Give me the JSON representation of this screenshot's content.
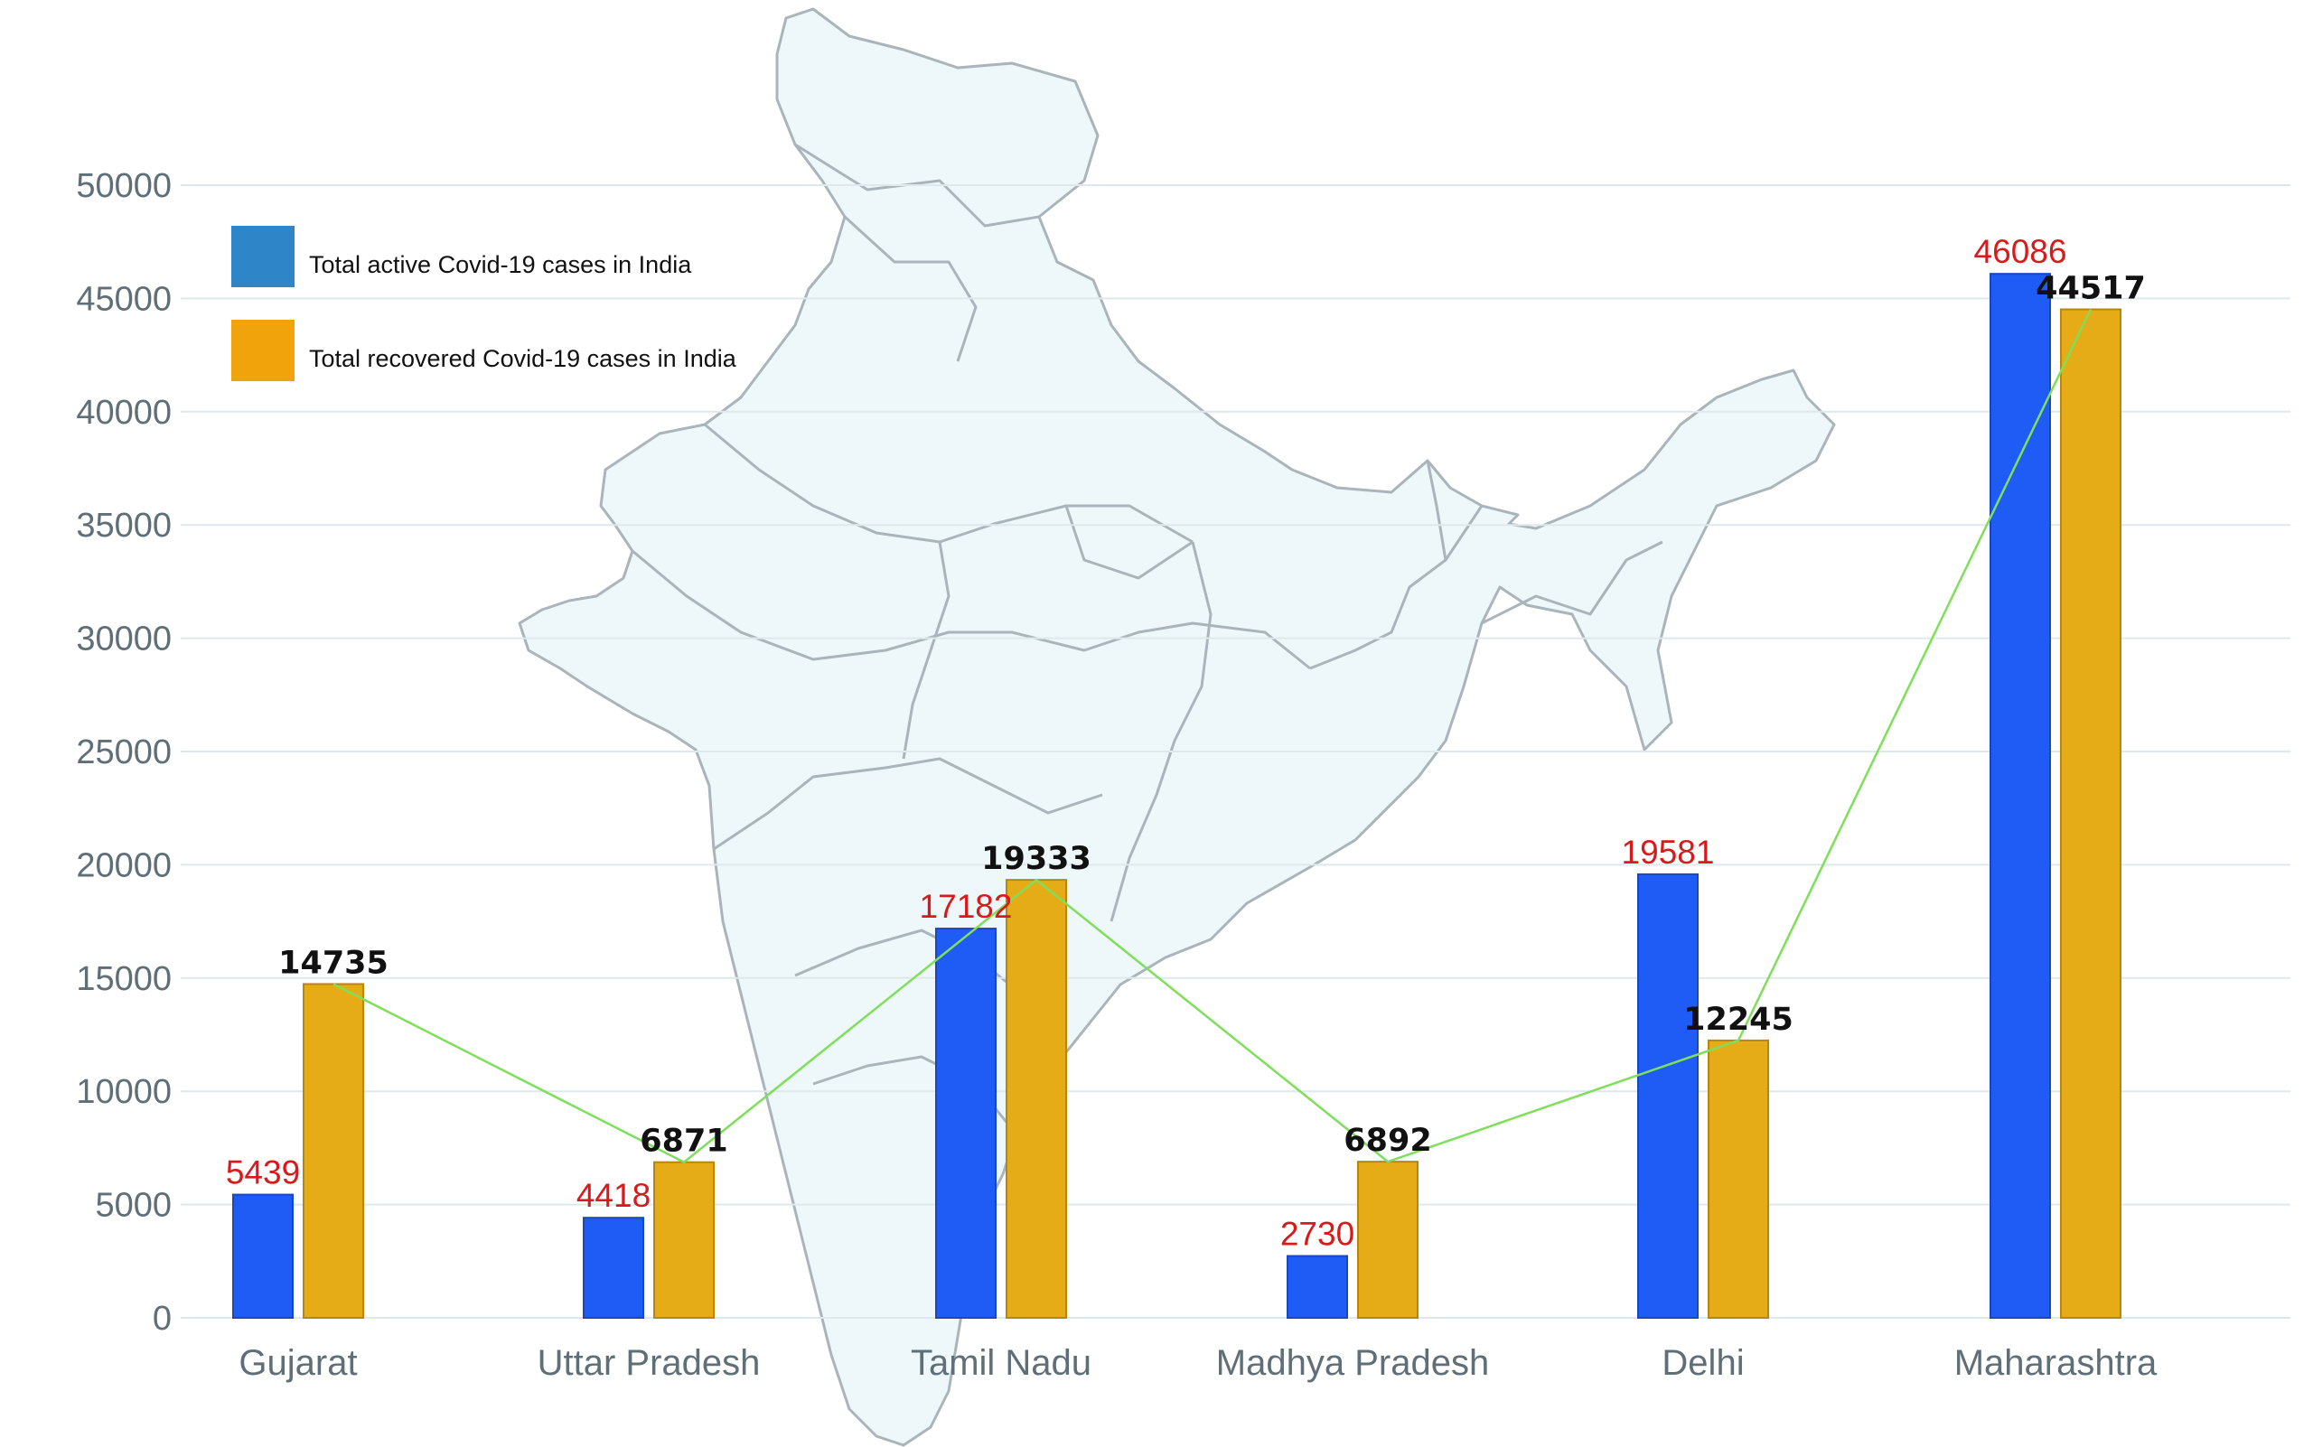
{
  "chart_data": {
    "type": "bar",
    "categories": [
      "Gujarat",
      "Uttar Pradesh",
      "Tamil Nadu",
      "Madhya Pradesh",
      "Delhi",
      "Maharashtra"
    ],
    "series": [
      {
        "name": "Total active Covid-19 cases in India",
        "values": [
          5439,
          4418,
          17182,
          2730,
          19581,
          46086
        ],
        "color": "#1e5cf5",
        "label_color": "#d81a1a"
      },
      {
        "name": "Total recovered Covid-19 cases in India",
        "values": [
          14735,
          6871,
          19333,
          6892,
          12245,
          44517
        ],
        "color": "#e6ac18",
        "label_color": "#111111"
      }
    ],
    "trend_line": {
      "series": "Total recovered Covid-19 cases in India",
      "color": "#7ee05a"
    },
    "ylim": [
      0,
      50000
    ],
    "yticks": [
      0,
      5000,
      10000,
      15000,
      20000,
      25000,
      30000,
      35000,
      40000,
      45000,
      50000
    ],
    "grid": true,
    "legend_position": "top-left",
    "background": "map of India",
    "title": "",
    "xlabel": "",
    "ylabel": ""
  }
}
